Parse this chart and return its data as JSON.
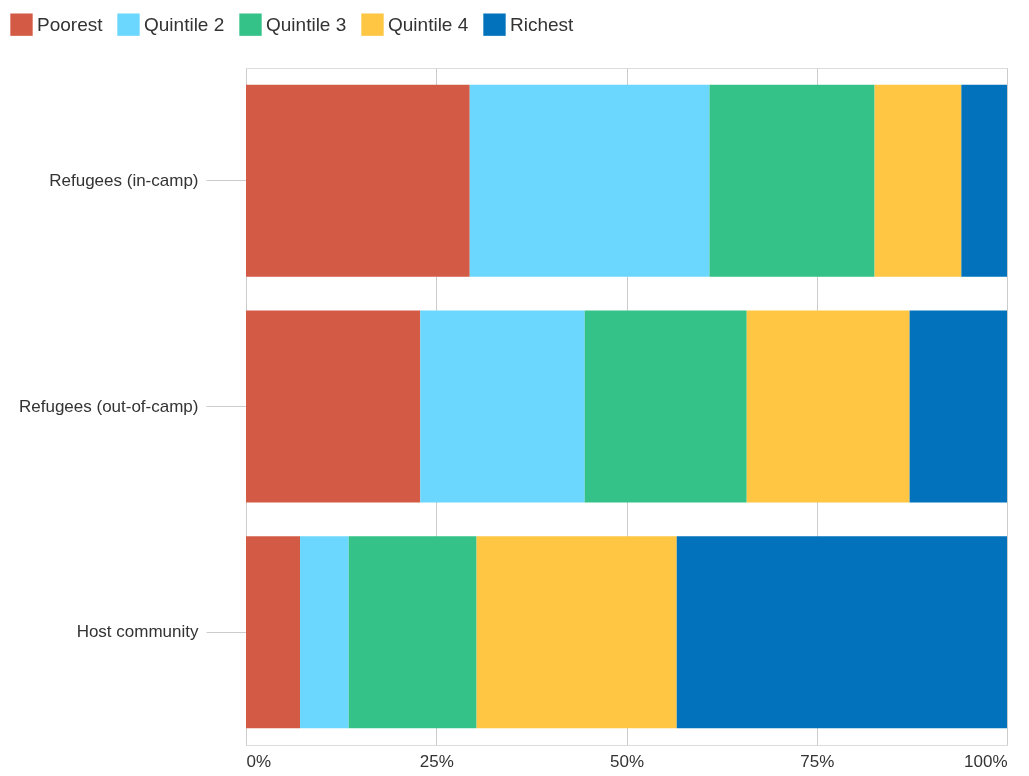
{
  "chart_data": {
    "type": "bar",
    "orientation": "horizontal",
    "stacked": true,
    "categories": [
      "Refugees (in-camp)",
      "Refugees (out-of-camp)",
      "Host community"
    ],
    "series": [
      {
        "name": "Poorest",
        "color": "#d35b46",
        "values": [
          29.4,
          22.9,
          7.1
        ]
      },
      {
        "name": "Quintile 2",
        "color": "#6bd7fe",
        "values": [
          31.5,
          21.6,
          6.4
        ]
      },
      {
        "name": "Quintile 3",
        "color": "#34c289",
        "values": [
          21.7,
          21.3,
          16.8
        ]
      },
      {
        "name": "Quintile 4",
        "color": "#fec643",
        "values": [
          11.4,
          21.4,
          26.3
        ]
      },
      {
        "name": "Richest",
        "color": "#0172bb",
        "values": [
          6.0,
          12.8,
          43.4
        ]
      }
    ],
    "xlim": [
      0,
      100
    ],
    "xticks": [
      {
        "value": 0,
        "label": "0%"
      },
      {
        "value": 25,
        "label": "25%"
      },
      {
        "value": 50,
        "label": "50%"
      },
      {
        "value": 75,
        "label": "75%"
      },
      {
        "value": 100,
        "label": "100%"
      }
    ],
    "grid": "x",
    "legend": "top left"
  }
}
